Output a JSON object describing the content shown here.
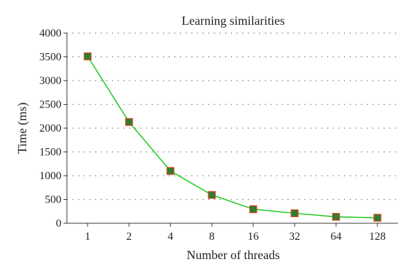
{
  "chart_data": {
    "type": "line",
    "title": "Learning similarities",
    "xlabel": "Number of threads",
    "ylabel": "Time (ms)",
    "categories": [
      "1",
      "2",
      "4",
      "8",
      "16",
      "32",
      "64",
      "128"
    ],
    "series": [
      {
        "values": [
          3510,
          2130,
          1100,
          595,
          295,
          210,
          135,
          115
        ]
      }
    ],
    "yticks": [
      "0",
      "500",
      "1000",
      "1500",
      "2000",
      "2500",
      "3000",
      "3500",
      "4000"
    ],
    "ylim": [
      0,
      4000
    ],
    "grid": true,
    "grid_style": "dotted",
    "legend": "none",
    "colors": {
      "line": "#22cc22",
      "marker_fill": "#2e7d32",
      "marker_stroke": "#d84315",
      "axis": "#333333",
      "grid": "#555555"
    }
  }
}
